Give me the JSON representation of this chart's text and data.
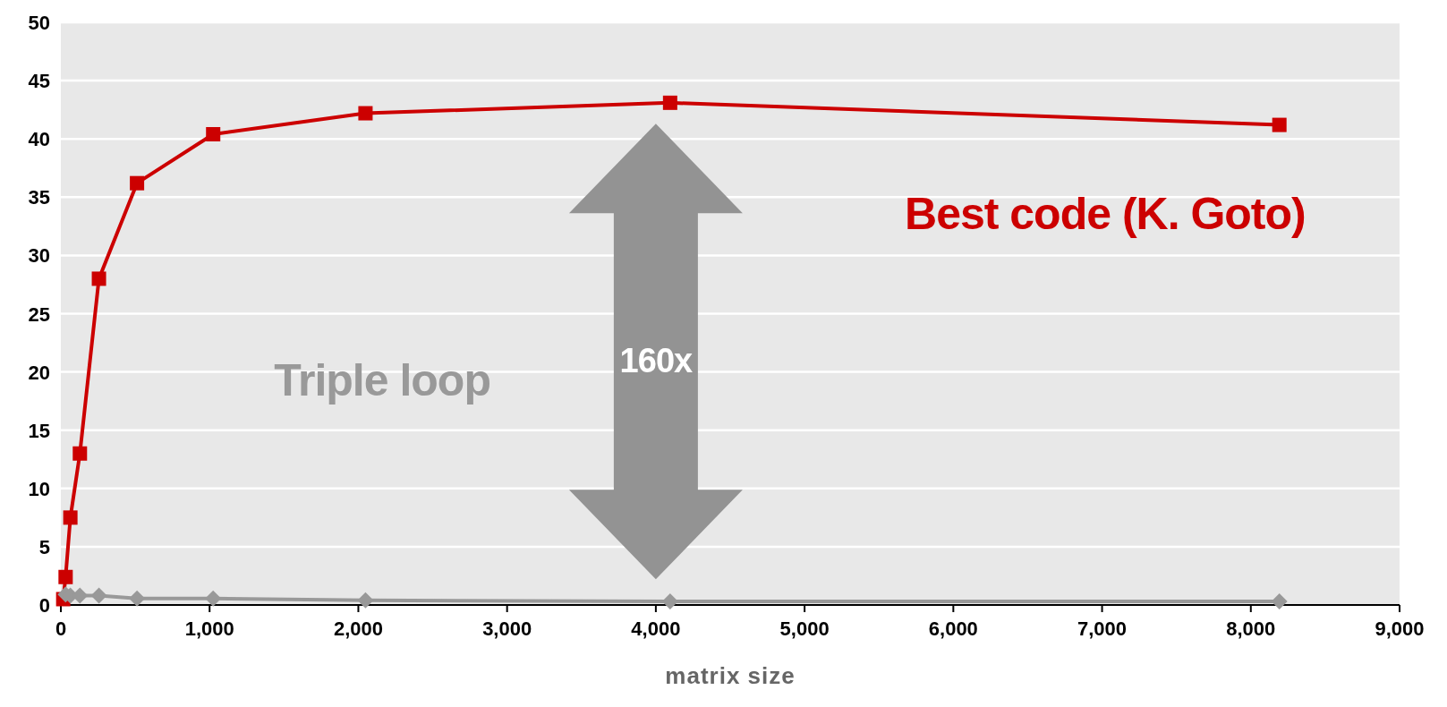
{
  "chart_data": {
    "type": "line",
    "xlabel": "matrix size",
    "x": [
      16,
      32,
      64,
      128,
      256,
      512,
      1024,
      2048,
      4096,
      8192
    ],
    "series": [
      {
        "name": "Best code (K. Goto)",
        "color": "#cc0000",
        "marker": "square",
        "values": [
          0.5,
          2.4,
          7.5,
          13,
          28,
          36.2,
          40.4,
          42.2,
          43.1,
          41.2
        ]
      },
      {
        "name": "Triple loop",
        "color": "#999999",
        "marker": "diamond",
        "values": [
          null,
          0.9,
          0.8,
          0.8,
          0.8,
          0.55,
          0.55,
          0.4,
          0.3,
          0.3
        ]
      }
    ],
    "xlim": [
      0,
      9000
    ],
    "xticks": [
      0,
      {
        "value": 1000,
        "label": "1,000"
      },
      {
        "value": 2000,
        "label": "2,000"
      },
      {
        "value": 3000,
        "label": "3,000"
      },
      {
        "value": 4000,
        "label": "4,000"
      },
      {
        "value": 5000,
        "label": "5,000"
      },
      {
        "value": 6000,
        "label": "6,000"
      },
      {
        "value": 7000,
        "label": "7,000"
      },
      {
        "value": 8000,
        "label": "8,000"
      },
      {
        "value": 9000,
        "label": "9,000"
      }
    ],
    "ylim": [
      0,
      50
    ],
    "yticks": [
      0,
      5,
      10,
      15,
      20,
      25,
      30,
      35,
      40,
      45,
      50
    ],
    "grid": "y",
    "line_style": "solid",
    "annotations": [
      "160x"
    ]
  }
}
